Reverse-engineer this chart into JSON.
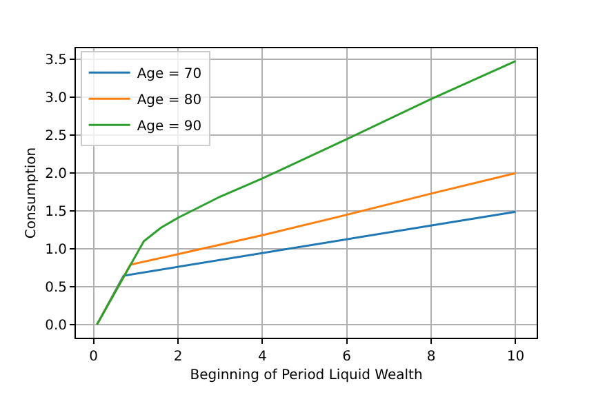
{
  "chart_data": {
    "type": "line",
    "xlabel": "Beginning of Period Liquid Wealth",
    "ylabel": "Consumption",
    "series": [
      {
        "name": "Age = 70",
        "color": "#1f77b4",
        "x": [
          0.08,
          0.71,
          10
        ],
        "values": [
          0,
          0.645,
          1.49
        ]
      },
      {
        "name": "Age = 80",
        "color": "#ff7f0e",
        "x": [
          0.08,
          0.87,
          2,
          4,
          6,
          8,
          10
        ],
        "values": [
          0,
          0.79,
          0.93,
          1.18,
          1.45,
          1.73,
          2.0
        ]
      },
      {
        "name": "Age = 90",
        "color": "#2ca02c",
        "x": [
          0.08,
          1.19,
          1.6,
          2,
          3,
          4,
          6,
          8,
          10
        ],
        "values": [
          0,
          1.1,
          1.28,
          1.41,
          1.69,
          1.93,
          2.45,
          2.98,
          3.48
        ]
      }
    ],
    "xlim": [
      -0.42,
      10.5
    ],
    "xticks": [
      0,
      2,
      4,
      6,
      8,
      10
    ],
    "ylim": [
      -0.174,
      3.65
    ],
    "yticks": [
      {
        "value": 0,
        "label": "0.0"
      },
      {
        "value": 0.5,
        "label": "0.5"
      },
      {
        "value": 1,
        "label": "1.0"
      },
      {
        "value": 1.5,
        "label": "1.5"
      },
      {
        "value": 2,
        "label": "2.0"
      },
      {
        "value": 2.5,
        "label": "2.5"
      },
      {
        "value": 3,
        "label": "3.0"
      },
      {
        "value": 3.5,
        "label": "3.5"
      }
    ],
    "grid": true,
    "legend": "top left"
  }
}
